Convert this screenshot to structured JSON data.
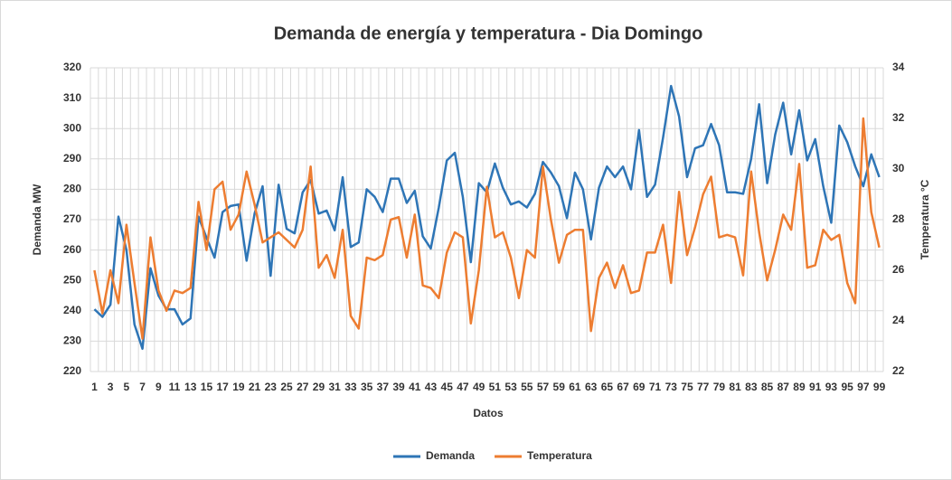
{
  "chart_data": {
    "type": "line",
    "title": "Demanda de energía y temperatura - Dia Domingo",
    "x_label": "Datos",
    "y_label": "Demanda MW",
    "y2_label": "Temperatura °C",
    "categories": [
      1,
      null,
      3,
      null,
      5,
      null,
      7,
      null,
      9,
      null,
      11,
      null,
      13,
      null,
      15,
      null,
      17,
      null,
      19,
      null,
      21,
      null,
      23,
      null,
      25,
      null,
      27,
      null,
      29,
      null,
      31,
      null,
      33,
      null,
      35,
      null,
      37,
      null,
      39,
      null,
      41,
      null,
      43,
      null,
      45,
      null,
      47,
      null,
      49,
      null,
      51,
      null,
      53,
      null,
      55,
      null,
      57,
      null,
      59,
      null,
      61,
      null,
      63,
      null,
      65,
      null,
      67,
      null,
      69,
      null,
      71,
      null,
      73,
      null,
      75,
      null,
      77,
      null,
      79,
      null,
      81,
      null,
      83,
      null,
      85,
      null,
      87,
      null,
      89,
      null,
      91,
      null,
      93,
      null,
      95,
      null,
      97,
      null,
      99
    ],
    "series": [
      {
        "name": "Demanda",
        "color": "#2e75b6",
        "axis": "y",
        "values": [
          240.5,
          238,
          242,
          271,
          260,
          235.5,
          227.5,
          254,
          245,
          240.5,
          240.5,
          235.5,
          237.5,
          271,
          264,
          257.5,
          272.5,
          274.5,
          275,
          256.5,
          272,
          281,
          251.5,
          281.5,
          267,
          265.5,
          279,
          283,
          272,
          273,
          266.5,
          284,
          261,
          262.5,
          280,
          277.5,
          272.5,
          283.5,
          283.5,
          275.5,
          279.5,
          264.5,
          260.5,
          274,
          289.5,
          292,
          277.5,
          256,
          282,
          279,
          288.5,
          280.5,
          275,
          276,
          274,
          278.5,
          289,
          285.5,
          281,
          270.5,
          285.5,
          280,
          263.5,
          280.5,
          287.5,
          284,
          287.5,
          280,
          299.5,
          277.5,
          281.5,
          297,
          314,
          304,
          284,
          293.5,
          294.5,
          301.5,
          294.5,
          279,
          279,
          278.5,
          290,
          308,
          282,
          298,
          308.5,
          291.5,
          306,
          289.5,
          296.5,
          281,
          269,
          301,
          295.5,
          287.5,
          281,
          291.5,
          284
        ]
      },
      {
        "name": "Temperatura",
        "color": "#ed7d31",
        "axis": "y2",
        "values": [
          26,
          24.3,
          26,
          24.7,
          27.8,
          25.5,
          23.3,
          27.3,
          25.2,
          24.4,
          25.2,
          25.1,
          25.3,
          28.7,
          26.8,
          29.2,
          29.5,
          27.6,
          28.2,
          29.9,
          28.6,
          27.1,
          27.3,
          27.5,
          27.2,
          26.9,
          27.6,
          30.1,
          26.1,
          26.6,
          25.7,
          27.6,
          24.2,
          23.7,
          26.5,
          26.4,
          26.6,
          28,
          28.1,
          26.5,
          28.2,
          25.4,
          25.3,
          24.9,
          26.7,
          27.5,
          27.3,
          23.9,
          26,
          29.3,
          27.3,
          27.5,
          26.5,
          24.9,
          26.8,
          26.5,
          30.1,
          28,
          26.3,
          27.4,
          27.6,
          27.6,
          23.6,
          25.7,
          26.3,
          25.3,
          26.2,
          25.1,
          25.2,
          26.7,
          26.7,
          27.8,
          25.5,
          29.1,
          26.6,
          27.7,
          29,
          29.7,
          27.3,
          27.4,
          27.3,
          25.8,
          29.9,
          27.5,
          25.6,
          26.8,
          28.2,
          27.6,
          30.2,
          26.1,
          26.2,
          27.6,
          27.2,
          27.4,
          25.5,
          24.7,
          32,
          28.3,
          26.9
        ]
      }
    ],
    "ylim": [
      220,
      320
    ],
    "yticks": [
      220,
      230,
      240,
      250,
      260,
      270,
      280,
      290,
      300,
      310,
      320
    ],
    "y2lim": [
      22,
      34
    ],
    "y2ticks": [
      22,
      24,
      26,
      28,
      30,
      32,
      34
    ],
    "grid": true,
    "legend": "bottom"
  }
}
